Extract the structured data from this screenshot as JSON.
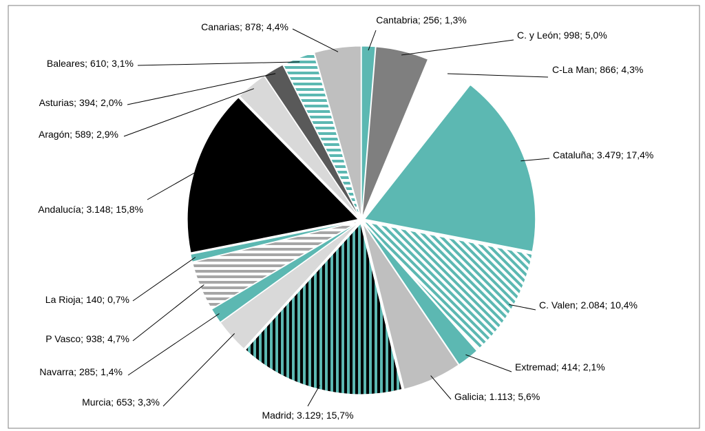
{
  "chart_data": {
    "type": "pie",
    "label_separator": "; ",
    "categories": [
      "Cantabria",
      "C. y León",
      "C-La Man",
      "Cataluña",
      "C. Valen",
      "Extremad",
      "Galicia",
      "Madrid",
      "Murcia",
      "Navarra",
      "P Vasco",
      "La Rioja",
      "Andalucía",
      "Aragón",
      "Asturias",
      "Baleares",
      "Canarias"
    ],
    "values": [
      256,
      998,
      866,
      3479,
      2084,
      414,
      1113,
      3129,
      653,
      285,
      938,
      140,
      3148,
      589,
      394,
      610,
      878
    ],
    "value_labels": [
      "256",
      "998",
      "866",
      "3.479",
      "2.084",
      "414",
      "1.113",
      "3.129",
      "653",
      "285",
      "938",
      "140",
      "3.148",
      "589",
      "394",
      "610",
      "878"
    ],
    "percent_labels": [
      "1,3%",
      "5,0%",
      "4,3%",
      "17,4%",
      "10,4%",
      "2,1%",
      "5,6%",
      "15,7%",
      "3,3%",
      "1,4%",
      "4,7%",
      "0,7%",
      "15,8%",
      "2,9%",
      "2,0%",
      "3,1%",
      "4,4%"
    ],
    "colors": [
      "#5cb8b2",
      "#7f7f7f",
      "#ffffff",
      "#5cb8b2",
      "#5cb8b2",
      "#5cb8b2",
      "#bfbfbf",
      "#5cb8b2",
      "#d9d9d9",
      "#5cb8b2",
      "#a6a6a6",
      "#5cb8b2",
      "#000000",
      "#d9d9d9",
      "#595959",
      "#5cb8b2",
      "#bfbfbf"
    ],
    "hatch": [
      "none",
      "none",
      "none",
      "none",
      "diagonal",
      "none",
      "none",
      "vertical",
      "none",
      "none",
      "horizontal",
      "none",
      "none",
      "none",
      "none",
      "horizontal",
      "none"
    ]
  }
}
